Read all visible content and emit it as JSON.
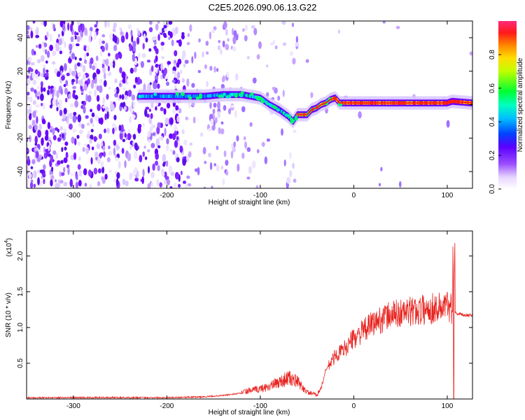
{
  "title": "C2E5.2026.090.06.13.G22",
  "chart_data": [
    {
      "type": "heatmap",
      "xlabel": "Height of straight line (km)",
      "ylabel": "Frequency (Hz)",
      "xlim": [
        -350,
        127
      ],
      "ylim": [
        -50,
        50
      ],
      "xticks": [
        -300,
        -200,
        -100,
        0,
        100
      ],
      "yticks": [
        -40,
        -20,
        0,
        20,
        40
      ],
      "colorbar": {
        "label": "Normalized spectral amplitude",
        "range": [
          0.0,
          1.0
        ],
        "ticks": [
          0.0,
          0.2,
          0.4,
          0.6,
          0.8
        ],
        "colormap": "rainbow (white-violet-blue-cyan-green-yellow-orange-red)"
      },
      "ridge": {
        "x": [
          -225,
          -200,
          -180,
          -160,
          -140,
          -120,
          -100,
          -90,
          -80,
          -70,
          -65,
          -60,
          -55,
          -50,
          -45,
          -40,
          -35,
          -30,
          -25,
          -20,
          -15,
          -10,
          0,
          20,
          50,
          80,
          100,
          105,
          127
        ],
        "y": [
          5,
          5,
          5,
          5,
          6,
          6,
          4,
          0,
          -3,
          -7,
          -10,
          -6,
          -6,
          -6,
          -3,
          -2,
          0,
          1,
          3,
          4,
          1,
          1,
          1,
          1,
          1,
          1,
          1,
          2,
          1
        ]
      }
    },
    {
      "type": "line",
      "xlabel": "Height of straight line (km)",
      "ylabel": "SNR (10 * v/v)",
      "yscale_label": "(x10",
      "yscale_exp": "4",
      "xlim": [
        -350,
        127
      ],
      "ylim": [
        0,
        2.35
      ],
      "xticks": [
        -300,
        -200,
        -100,
        0,
        100
      ],
      "yticks": [
        0.5,
        1.0,
        1.5,
        2.0
      ],
      "ytick_labels": [
        "0.5",
        "1.0",
        "1.5",
        "2.0"
      ],
      "color": "#e8231f",
      "envelope": {
        "x": [
          -350,
          -300,
          -250,
          -200,
          -160,
          -140,
          -120,
          -100,
          -90,
          -80,
          -70,
          -60,
          -50,
          -40,
          -35,
          -30,
          -20,
          -10,
          0,
          10,
          20,
          30,
          40,
          50,
          60,
          70,
          80,
          90,
          100,
          104,
          106,
          107,
          108,
          110,
          115,
          127
        ],
        "y": [
          0.02,
          0.02,
          0.02,
          0.02,
          0.03,
          0.05,
          0.08,
          0.12,
          0.15,
          0.2,
          0.25,
          0.2,
          0.08,
          0.05,
          0.15,
          0.4,
          0.6,
          0.7,
          0.85,
          0.95,
          1.05,
          1.12,
          1.18,
          1.2,
          1.22,
          1.24,
          1.26,
          1.28,
          1.3,
          1.3,
          1.2,
          0.2,
          1.2,
          1.2,
          1.18,
          1.17
        ]
      }
    }
  ]
}
